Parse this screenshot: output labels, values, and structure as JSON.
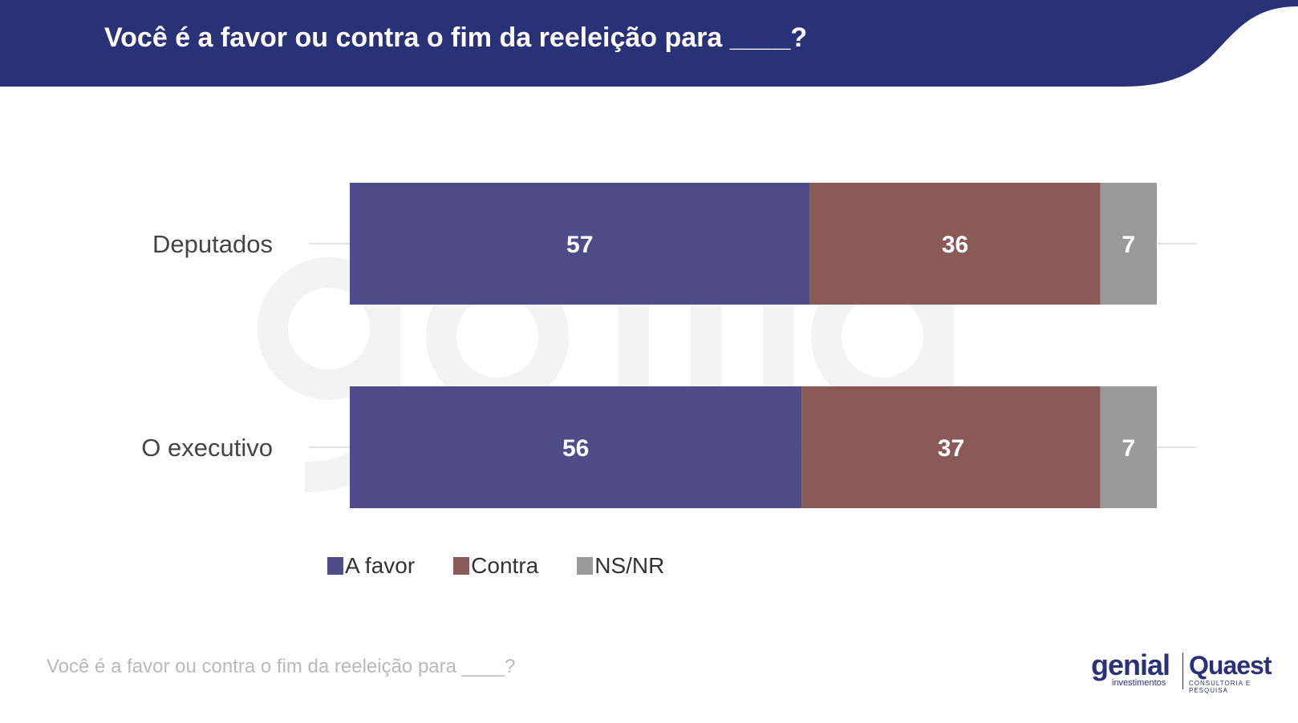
{
  "header": {
    "title": "Você é a favor ou contra o fim da reeleição para ____?"
  },
  "colors": {
    "header_bg": "#2a3277",
    "a_favor": "#4f4d89",
    "contra": "#8a5a56",
    "ns_nr": "#9a9a9a"
  },
  "chart_data": {
    "type": "bar",
    "orientation": "horizontal",
    "stacked": true,
    "title": "Você é a favor ou contra o fim da reeleição para ____?",
    "categories": [
      "Deputados",
      "O executivo"
    ],
    "series": [
      {
        "name": "A favor",
        "values": [
          57,
          56
        ]
      },
      {
        "name": "Contra",
        "values": [
          36,
          37
        ]
      },
      {
        "name": "NS/NR",
        "values": [
          7,
          7
        ]
      }
    ],
    "xlim": [
      0,
      100
    ],
    "legend_position": "bottom-left"
  },
  "footer": {
    "note": "Você é a favor ou contra o fim da reeleição para ____?"
  },
  "logos": {
    "genial": "genial",
    "genial_sub": "investimentos",
    "quaest": "Quaest",
    "quaest_sub": "CONSULTORIA E PESQUISA"
  }
}
